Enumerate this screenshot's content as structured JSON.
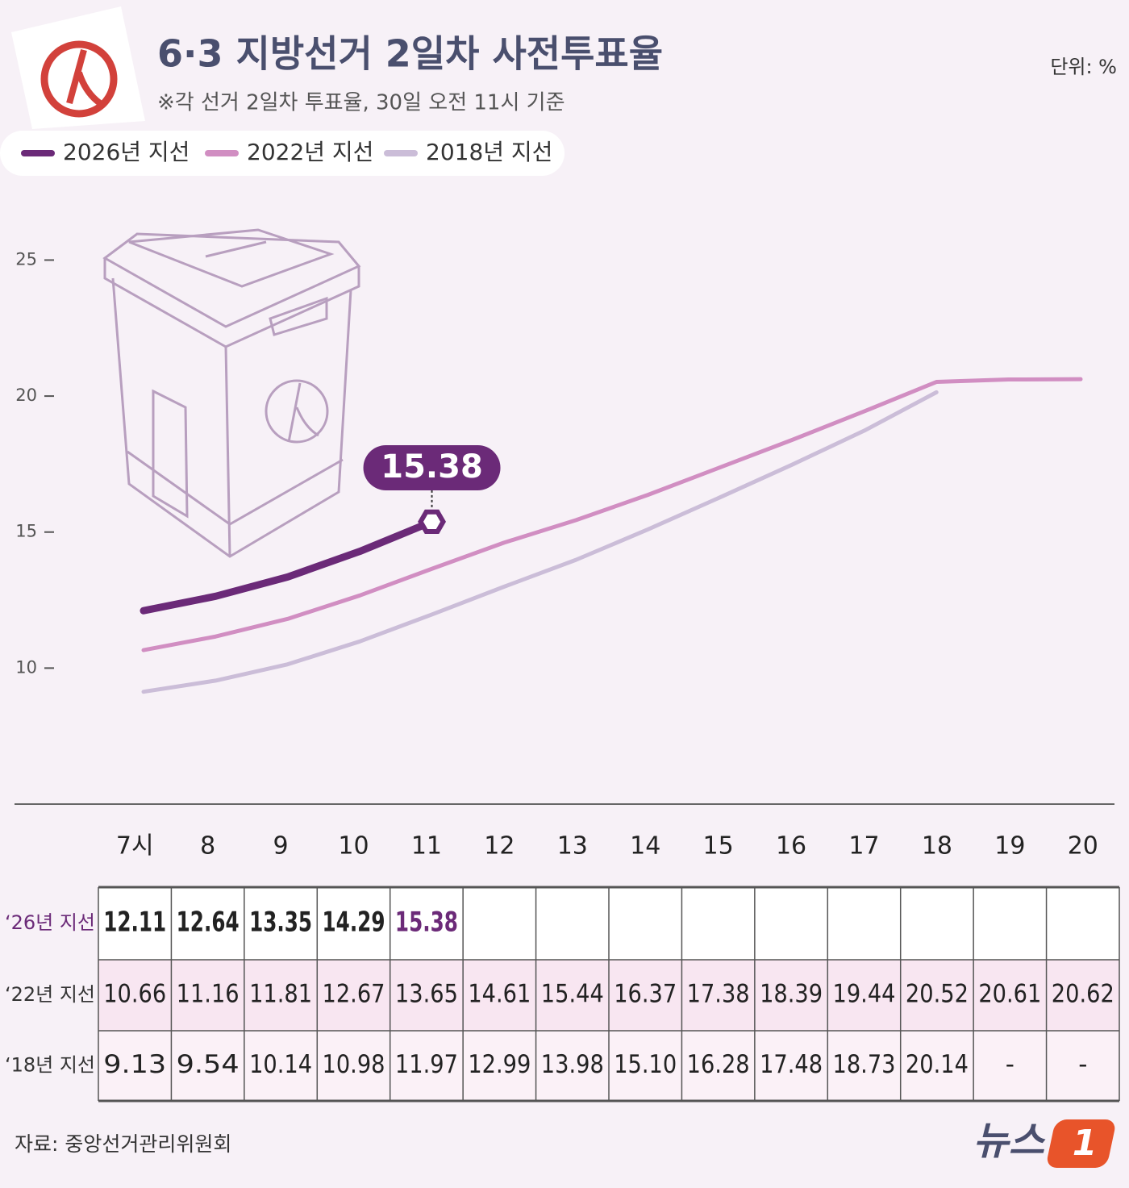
{
  "chart_data": {
    "type": "line",
    "title": "6·3 지방선거 2일차 사전투표율",
    "subtitle": "※각 선거 2일차 투표율, 30일 오전 11시 기준",
    "unit": "단위: %",
    "source": "자료: 중앙선거관리위원회",
    "brand": {
      "text": "뉴스",
      "badge": "1"
    },
    "categories": [
      "7시",
      "8",
      "9",
      "10",
      "11",
      "12",
      "13",
      "14",
      "15",
      "16",
      "17",
      "18",
      "19",
      "20"
    ],
    "ylim": [
      5,
      27
    ],
    "yticks": [
      10,
      15,
      20,
      25
    ],
    "grid": false,
    "legend": "top-left",
    "table_row_labels": [
      "‘26년 지선",
      "‘22년 지선",
      "‘18년 지선"
    ],
    "callout": 0,
    "series": [
      {
        "name": "2026년 지선",
        "color": "#6b2a78",
        "values": [
          12.11,
          12.64,
          13.35,
          14.29,
          15.38,
          null,
          null,
          null,
          null,
          null,
          null,
          null,
          null,
          null
        ],
        "value_labels": [
          "12.11",
          "12.64",
          "13.35",
          "14.29",
          "15.38",
          null,
          null,
          null,
          null,
          null,
          null,
          null,
          null,
          null
        ]
      },
      {
        "name": "2022년 지선",
        "color": "#d18ec2",
        "values": [
          10.66,
          11.16,
          11.81,
          12.67,
          13.65,
          14.61,
          15.44,
          16.37,
          17.38,
          18.39,
          19.44,
          20.52,
          20.61,
          20.62
        ],
        "value_labels": [
          "10.66",
          "11.16",
          "11.81",
          "12.67",
          "13.65",
          "14.61",
          "15.44",
          "16.37",
          "17.38",
          "18.39",
          "19.44",
          "20.52",
          "20.61",
          "20.62"
        ]
      },
      {
        "name": "2018년 지선",
        "color": "#cbbdd8",
        "values": [
          9.13,
          9.54,
          10.14,
          10.98,
          11.97,
          12.99,
          13.98,
          15.1,
          16.28,
          17.48,
          18.73,
          20.14,
          null,
          null
        ],
        "value_labels": [
          "9.13",
          "9.54",
          "10.14",
          "10.98",
          "11.97",
          "12.99",
          "13.98",
          "15.10",
          "16.28",
          "17.48",
          "18.73",
          "20.14",
          "-",
          "-"
        ]
      }
    ]
  }
}
